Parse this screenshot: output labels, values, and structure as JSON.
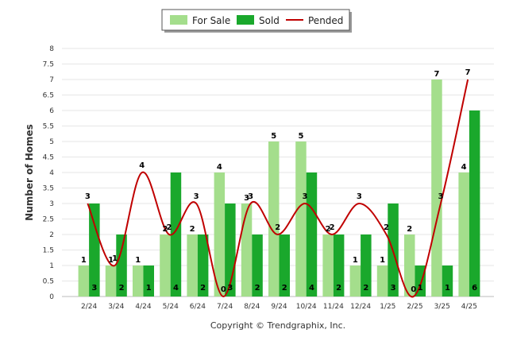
{
  "chart_data": {
    "type": "bar",
    "categories": [
      "2/24",
      "3/24",
      "4/24",
      "5/24",
      "6/24",
      "7/24",
      "8/24",
      "9/24",
      "10/24",
      "11/24",
      "12/24",
      "1/25",
      "2/25",
      "3/25",
      "4/25"
    ],
    "series": [
      {
        "name": "For Sale",
        "type": "bar",
        "color": "#a4de8c",
        "values": [
          1,
          1,
          1,
          2,
          2,
          4,
          3,
          5,
          5,
          2,
          1,
          1,
          2,
          7,
          4
        ]
      },
      {
        "name": "Sold",
        "type": "bar",
        "color": "#1aa82c",
        "values": [
          3,
          2,
          1,
          4,
          2,
          3,
          2,
          2,
          4,
          2,
          2,
          3,
          1,
          1,
          6
        ]
      },
      {
        "name": "Pended",
        "type": "line",
        "color": "#c00000",
        "values": [
          3,
          1,
          4,
          2,
          3,
          0,
          3,
          2,
          3,
          2,
          3,
          2,
          0,
          3,
          7
        ]
      }
    ],
    "ylabel": "Number of Homes",
    "ylim": [
      0,
      8
    ],
    "yticks": [
      "0",
      "0.5",
      "1",
      "1.5",
      "2",
      "2.5",
      "3",
      "3.5",
      "4",
      "4.5",
      "5",
      "5.5",
      "6",
      "6.5",
      "7",
      "7.5",
      "8"
    ],
    "grid": true,
    "legend": "top-center"
  },
  "footer": {
    "copyright": "Copyright © Trendgraphix, Inc."
  }
}
